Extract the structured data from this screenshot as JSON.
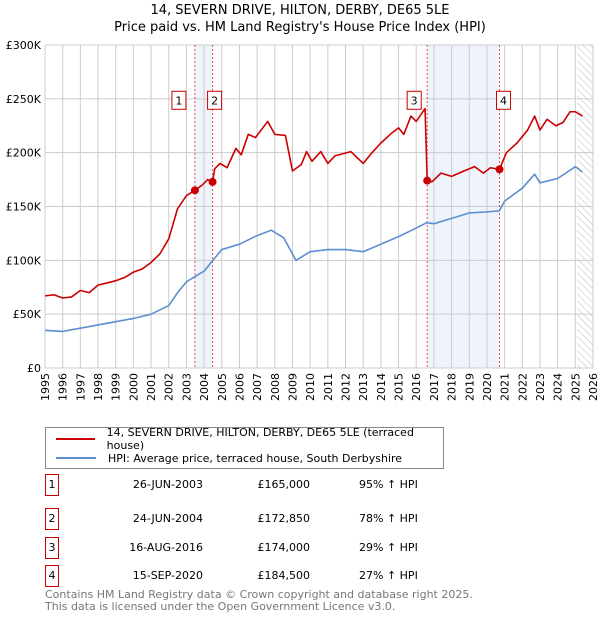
{
  "chart_data": {
    "type": "line",
    "title": "14, SEVERN DRIVE, HILTON, DERBY, DE65 5LE",
    "subtitle": "Price paid vs. HM Land Registry's House Price Index (HPI)",
    "xlim": [
      1995,
      2026
    ],
    "ylim": [
      0,
      300000
    ],
    "y_ticks": [
      {
        "v": 0,
        "label": "£0"
      },
      {
        "v": 50000,
        "label": "£50K"
      },
      {
        "v": 100000,
        "label": "£100K"
      },
      {
        "v": 150000,
        "label": "£150K"
      },
      {
        "v": 200000,
        "label": "£200K"
      },
      {
        "v": 250000,
        "label": "£250K"
      },
      {
        "v": 300000,
        "label": "£300K"
      }
    ],
    "x_ticks": [
      "1995",
      "1996",
      "1997",
      "1998",
      "1999",
      "2000",
      "2001",
      "2002",
      "2003",
      "2004",
      "2005",
      "2006",
      "2007",
      "2008",
      "2009",
      "2010",
      "2011",
      "2012",
      "2013",
      "2014",
      "2015",
      "2016",
      "2017",
      "2018",
      "2019",
      "2020",
      "2021",
      "2022",
      "2023",
      "2024",
      "2025",
      "2026"
    ],
    "grid": true,
    "colors": {
      "property": "#cc0000",
      "hpi": "#5b8fd0",
      "shade": "#eef3fc",
      "sale_line": "#e05050"
    },
    "shaded_ranges": [
      [
        2003.48,
        2004.48
      ],
      [
        2016.62,
        2020.71
      ]
    ],
    "forecast_start": 2025.1,
    "series": [
      {
        "name": "14, SEVERN DRIVE, HILTON, DERBY, DE65 5LE (terraced house)",
        "points": [
          [
            1995,
            67000
          ],
          [
            1995.5,
            68000
          ],
          [
            1996,
            65000
          ],
          [
            1996.5,
            66000
          ],
          [
            1997,
            72000
          ],
          [
            1997.5,
            70000
          ],
          [
            1998,
            77000
          ],
          [
            1998.5,
            79000
          ],
          [
            1999,
            81000
          ],
          [
            1999.5,
            84000
          ],
          [
            2000,
            89000
          ],
          [
            2000.5,
            92000
          ],
          [
            2001,
            98000
          ],
          [
            2001.5,
            106000
          ],
          [
            2002,
            120000
          ],
          [
            2002.5,
            148000
          ],
          [
            2003,
            160000
          ],
          [
            2003.48,
            165000
          ],
          [
            2003.9,
            170000
          ],
          [
            2004.2,
            175000
          ],
          [
            2004.48,
            172850
          ],
          [
            2004.6,
            185000
          ],
          [
            2004.9,
            190000
          ],
          [
            2005.3,
            186000
          ],
          [
            2005.8,
            204000
          ],
          [
            2006.1,
            198000
          ],
          [
            2006.5,
            217000
          ],
          [
            2006.9,
            214000
          ],
          [
            2007.6,
            229000
          ],
          [
            2008,
            217000
          ],
          [
            2008.6,
            216000
          ],
          [
            2009,
            183000
          ],
          [
            2009.5,
            189000
          ],
          [
            2009.8,
            201000
          ],
          [
            2010.1,
            192000
          ],
          [
            2010.6,
            201000
          ],
          [
            2011,
            190000
          ],
          [
            2011.4,
            197000
          ],
          [
            2012.3,
            201000
          ],
          [
            2013,
            190000
          ],
          [
            2013.5,
            200000
          ],
          [
            2014,
            209000
          ],
          [
            2014.6,
            218000
          ],
          [
            2015,
            223000
          ],
          [
            2015.3,
            217000
          ],
          [
            2015.7,
            234000
          ],
          [
            2016,
            229000
          ],
          [
            2016.5,
            241000
          ],
          [
            2016.62,
            174000
          ],
          [
            2016.9,
            173000
          ],
          [
            2017.4,
            181000
          ],
          [
            2018,
            178000
          ],
          [
            2018.7,
            183000
          ],
          [
            2019.3,
            187000
          ],
          [
            2019.8,
            181000
          ],
          [
            2020.2,
            186000
          ],
          [
            2020.71,
            184500
          ],
          [
            2021.1,
            200000
          ],
          [
            2021.7,
            209000
          ],
          [
            2022.3,
            221000
          ],
          [
            2022.7,
            234000
          ],
          [
            2023,
            221000
          ],
          [
            2023.4,
            231000
          ],
          [
            2023.9,
            225000
          ],
          [
            2024.3,
            228000
          ],
          [
            2024.7,
            238000
          ],
          [
            2025,
            238000
          ],
          [
            2025.4,
            234000
          ]
        ]
      },
      {
        "name": "HPI: Average price, terraced house, South Derbyshire",
        "points": [
          [
            1995,
            35000
          ],
          [
            1996,
            34000
          ],
          [
            1997,
            37000
          ],
          [
            1998,
            40000
          ],
          [
            1999,
            43000
          ],
          [
            2000,
            46000
          ],
          [
            2001,
            50000
          ],
          [
            2002,
            58000
          ],
          [
            2002.5,
            70000
          ],
          [
            2003,
            80000
          ],
          [
            2003.5,
            85000
          ],
          [
            2004,
            90000
          ],
          [
            2004.5,
            100000
          ],
          [
            2005,
            110000
          ],
          [
            2006,
            115000
          ],
          [
            2007,
            123000
          ],
          [
            2007.8,
            128000
          ],
          [
            2008.5,
            121000
          ],
          [
            2009.2,
            100000
          ],
          [
            2010,
            108000
          ],
          [
            2011,
            110000
          ],
          [
            2012,
            110000
          ],
          [
            2013,
            108000
          ],
          [
            2014,
            115000
          ],
          [
            2015,
            122000
          ],
          [
            2016,
            130000
          ],
          [
            2016.6,
            135000
          ],
          [
            2017,
            134000
          ],
          [
            2018,
            139000
          ],
          [
            2019,
            144000
          ],
          [
            2020,
            145000
          ],
          [
            2020.7,
            146000
          ],
          [
            2021,
            155000
          ],
          [
            2022,
            167000
          ],
          [
            2022.7,
            180000
          ],
          [
            2023,
            172000
          ],
          [
            2024,
            176000
          ],
          [
            2025,
            187000
          ],
          [
            2025.4,
            182000
          ]
        ]
      }
    ],
    "sales": [
      {
        "num": "1",
        "year": 2003.48,
        "value": 165000
      },
      {
        "num": "2",
        "year": 2004.48,
        "value": 172850
      },
      {
        "num": "3",
        "year": 2016.62,
        "value": 174000
      },
      {
        "num": "4",
        "year": 2020.71,
        "value": 184500
      }
    ]
  },
  "legend": {
    "property": "14, SEVERN DRIVE, HILTON, DERBY, DE65 5LE (terraced house)",
    "hpi": "HPI: Average price, terraced house, South Derbyshire"
  },
  "table": [
    {
      "num": "1",
      "date": "26-JUN-2003",
      "price": "£165,000",
      "hpi": "95% ↑ HPI"
    },
    {
      "num": "2",
      "date": "24-JUN-2004",
      "price": "£172,850",
      "hpi": "78% ↑ HPI"
    },
    {
      "num": "3",
      "date": "16-AUG-2016",
      "price": "£174,000",
      "hpi": "29% ↑ HPI"
    },
    {
      "num": "4",
      "date": "15-SEP-2020",
      "price": "£184,500",
      "hpi": "27% ↑ HPI"
    }
  ],
  "footer": {
    "line1": "Contains HM Land Registry data © Crown copyright and database right 2025.",
    "line2": "This data is licensed under the Open Government Licence v3.0."
  }
}
